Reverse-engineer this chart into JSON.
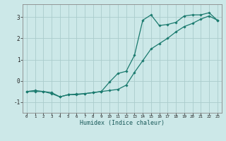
{
  "xlabel": "Humidex (Indice chaleur)",
  "ylabel": "",
  "bg_color": "#cce8e8",
  "grid_color": "#aacccc",
  "line_color": "#1a7a6e",
  "xlim": [
    -0.5,
    23.5
  ],
  "ylim": [
    -1.5,
    3.6
  ],
  "xticks": [
    0,
    1,
    2,
    3,
    4,
    5,
    6,
    7,
    8,
    9,
    10,
    11,
    12,
    13,
    14,
    15,
    16,
    17,
    18,
    19,
    20,
    21,
    22,
    23
  ],
  "yticks": [
    -1,
    0,
    1,
    2,
    3
  ],
  "line1_x": [
    0,
    1,
    2,
    3,
    4,
    5,
    6,
    7,
    8,
    9,
    10,
    11,
    12,
    13,
    14,
    15,
    16,
    17,
    18,
    19,
    20,
    21,
    22,
    23
  ],
  "line1_y": [
    -0.5,
    -0.5,
    -0.5,
    -0.6,
    -0.75,
    -0.65,
    -0.65,
    -0.6,
    -0.55,
    -0.5,
    -0.05,
    0.35,
    0.45,
    1.2,
    2.85,
    3.1,
    2.6,
    2.65,
    2.75,
    3.05,
    3.1,
    3.1,
    3.2,
    2.85
  ],
  "line2_x": [
    0,
    1,
    2,
    3,
    4,
    5,
    6,
    7,
    8,
    9,
    10,
    11,
    12,
    13,
    14,
    15,
    16,
    17,
    18,
    19,
    20,
    21,
    22,
    23
  ],
  "line2_y": [
    -0.5,
    -0.45,
    -0.5,
    -0.55,
    -0.75,
    -0.65,
    -0.62,
    -0.6,
    -0.55,
    -0.5,
    -0.45,
    -0.4,
    -0.2,
    0.4,
    0.95,
    1.5,
    1.75,
    2.0,
    2.3,
    2.55,
    2.7,
    2.9,
    3.05,
    2.85
  ]
}
